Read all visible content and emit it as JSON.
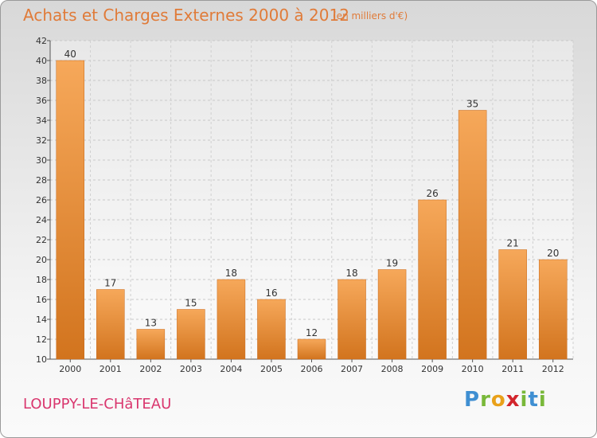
{
  "header": {
    "title": "Achats et Charges Externes 2000 à 2012",
    "subtitle": "(en milliers d'€)"
  },
  "footer": {
    "commune": "LOUPPY-LE-CHâTEAU",
    "brand": {
      "letters": [
        "P",
        "r",
        "o",
        "x",
        "i",
        "t",
        "i"
      ]
    }
  },
  "colors": {
    "bar": "#f0a04c",
    "bar_dark": "#d67a22",
    "title": "#e07b39",
    "commune": "#d9366e"
  },
  "chart_data": {
    "type": "bar",
    "title": "Achats et Charges Externes 2000 à 2012",
    "subtitle": "(en milliers d'€)",
    "categories": [
      "2000",
      "2001",
      "2002",
      "2003",
      "2004",
      "2005",
      "2006",
      "2007",
      "2008",
      "2009",
      "2010",
      "2011",
      "2012"
    ],
    "values": [
      40,
      17,
      13,
      15,
      18,
      16,
      12,
      18,
      19,
      26,
      35,
      21,
      20
    ],
    "ylim": [
      10,
      42
    ],
    "yticks": [
      10,
      12,
      14,
      16,
      18,
      20,
      22,
      24,
      26,
      28,
      30,
      32,
      34,
      36,
      38,
      40,
      42
    ],
    "grid": true,
    "legend": "none",
    "data_labels": true
  }
}
